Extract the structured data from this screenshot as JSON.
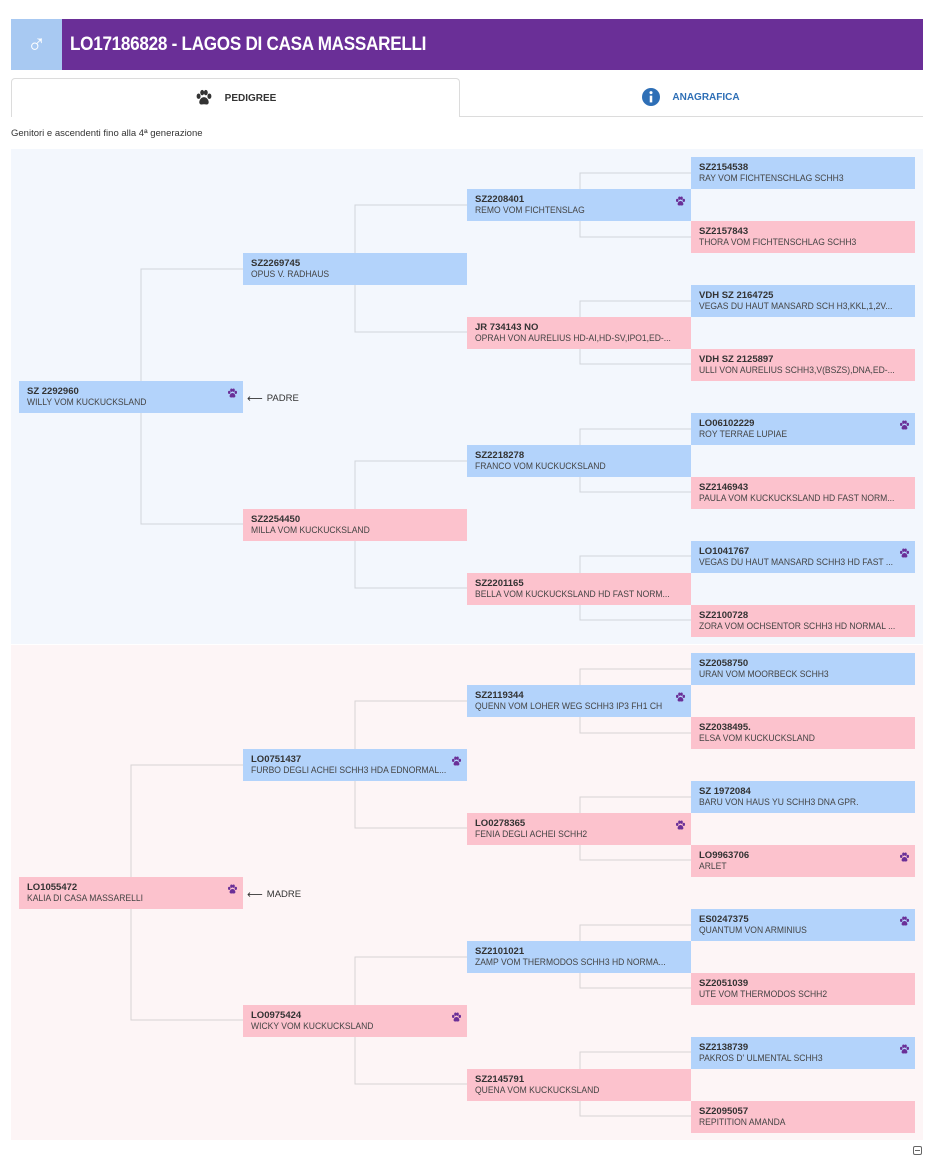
{
  "header": {
    "sex_symbol": "♂",
    "title": "LO17186828 - LAGOS DI CASA MASSARELLI"
  },
  "tabs": [
    {
      "label": "PEDIGREE",
      "icon": "paw-icon"
    },
    {
      "label": "ANAGRAFICA",
      "icon": "info-icon"
    }
  ],
  "subtitle": "Genitori e ascendenti fino alla 4ª generazione",
  "labels": {
    "padre": "PADRE",
    "madre": "MADRE",
    "arrow": "⟵"
  },
  "colors": {
    "header": "#6a2f97",
    "male": "#b3d3fb",
    "female": "#fcc2cd",
    "paw": "#6a2f97",
    "info": "#2e6fb6"
  },
  "pedigree": {
    "sire": {
      "reg": "SZ 2292960",
      "name": "WILLY VOM KUCKUCKSLAND",
      "paw": true
    },
    "sire_sire": {
      "reg": "SZ2269745",
      "name": "OPUS V. RADHAUS",
      "paw": false
    },
    "sire_dam": {
      "reg": "SZ2254450",
      "name": "MILLA VOM KUCKUCKSLAND",
      "paw": false
    },
    "sss": {
      "reg": "SZ2208401",
      "name": "REMO VOM FICHTENSLAG",
      "paw": true
    },
    "ssd": {
      "reg": "JR 734143 NO",
      "name": "OPRAH VON AURELIUS HD-AI,HD-SV,IPO1,ED-...",
      "paw": false
    },
    "sds": {
      "reg": "SZ2218278",
      "name": "FRANCO VOM KUCKUCKSLAND",
      "paw": false
    },
    "sdd": {
      "reg": "SZ2201165",
      "name": "BELLA VOM KUCKUCKSLAND HD FAST NORM...",
      "paw": false
    },
    "ssss": {
      "reg": "SZ2154538",
      "name": "RAY VOM FICHTENSCHLAG SCHH3",
      "paw": false
    },
    "sssd": {
      "reg": "SZ2157843",
      "name": "THORA VOM FICHTENSCHLAG SCHH3",
      "paw": false
    },
    "ssds": {
      "reg": "VDH SZ 2164725",
      "name": "VEGAS DU HAUT MANSARD SCH H3,KKL,1,2V...",
      "paw": false
    },
    "ssdd": {
      "reg": "VDH SZ 2125897",
      "name": "ULLI VON AURELIUS SCHH3,V(BSZS),DNA,ED-...",
      "paw": false
    },
    "sdss": {
      "reg": "LO06102229",
      "name": "ROY TERRAE LUPIAE",
      "paw": true
    },
    "sdsd": {
      "reg": "SZ2146943",
      "name": "PAULA VOM KUCKUCKSLAND HD FAST NORM...",
      "paw": false
    },
    "sdds": {
      "reg": "LO1041767",
      "name": "VEGAS DU HAUT MANSARD SCHH3 HD FAST ...",
      "paw": true
    },
    "sddd": {
      "reg": "SZ2100728",
      "name": "ZORA VOM OCHSENTOR SCHH3 HD NORMAL ...",
      "paw": false
    },
    "dam": {
      "reg": "LO1055472",
      "name": "KALIA DI CASA MASSARELLI",
      "paw": true
    },
    "dam_sire": {
      "reg": "LO0751437",
      "name": "FURBO DEGLI ACHEI SCHH3 HDA EDNORMAL...",
      "paw": true
    },
    "dam_dam": {
      "reg": "LO0975424",
      "name": "WICKY VOM KUCKUCKSLAND",
      "paw": true
    },
    "dss": {
      "reg": "SZ2119344",
      "name": "QUENN VOM LOHER WEG SCHH3 IP3 FH1 CH",
      "paw": true
    },
    "dsd": {
      "reg": "LO0278365",
      "name": "FENIA DEGLI ACHEI SCHH2",
      "paw": true
    },
    "dds": {
      "reg": "SZ2101021",
      "name": "ZAMP VOM THERMODOS SCHH3 HD NORMA...",
      "paw": false
    },
    "ddd": {
      "reg": "SZ2145791",
      "name": "QUENA VOM KUCKUCKSLAND",
      "paw": false
    },
    "dsss": {
      "reg": "SZ2058750",
      "name": "URAN VOM MOORBECK SCHH3",
      "paw": false
    },
    "dssd": {
      "reg": "SZ2038495.",
      "name": "ELSA VOM KUCKUCKSLAND",
      "paw": false
    },
    "dsds": {
      "reg": "SZ 1972084",
      "name": "BARU VON HAUS YU SCHH3 DNA GPR.",
      "paw": false
    },
    "dsdd": {
      "reg": "LO9963706",
      "name": "ARLET",
      "paw": true
    },
    "ddss": {
      "reg": "ES0247375",
      "name": "QUANTUM VON ARMINIUS",
      "paw": true
    },
    "ddsd": {
      "reg": "SZ2051039",
      "name": "UTE VOM THERMODOS SCHH2",
      "paw": false
    },
    "ddds": {
      "reg": "SZ2138739",
      "name": "PAKROS D' ULMENTAL SCHH3",
      "paw": true
    },
    "dddd": {
      "reg": "SZ2095057",
      "name": "REPITITION AMANDA",
      "paw": false
    }
  }
}
